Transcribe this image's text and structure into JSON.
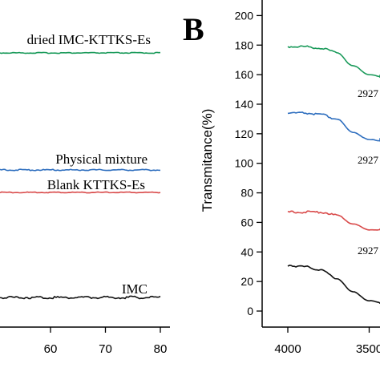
{
  "panel_b_label": "B",
  "chart_data": [
    {
      "type": "line",
      "panel": "A",
      "xlabel": "",
      "ylabel": "",
      "xlim": [
        0,
        80
      ],
      "x_ticks": [
        60,
        70,
        80
      ],
      "x_tick_labels": [
        "60",
        "70",
        "80"
      ],
      "series": [
        {
          "name": "dried IMC-KTTKS-Es",
          "color": "#1a9a5a",
          "x": [
            0,
            80
          ],
          "y": [
            0,
            0
          ]
        },
        {
          "name": "Physical mixture",
          "color": "#2f6fbf",
          "x": [
            0,
            80
          ],
          "y": [
            0,
            0
          ]
        },
        {
          "name": "Blank KTTKS-Es",
          "color": "#d94a4a",
          "x": [
            0,
            80
          ],
          "y": [
            0,
            0
          ]
        },
        {
          "name": "IMC",
          "color": "#111111",
          "x": [
            0,
            80
          ],
          "y": [
            0,
            0
          ]
        }
      ]
    },
    {
      "type": "line",
      "panel": "B",
      "ylabel": "Transmitance(%)",
      "xlabel": "",
      "xlim": [
        4200,
        3200
      ],
      "ylim": [
        -5,
        205
      ],
      "y_ticks": [
        0,
        20,
        40,
        60,
        80,
        100,
        120,
        140,
        160,
        180,
        200
      ],
      "y_tick_labels": [
        "0",
        "20",
        "40",
        "60",
        "80",
        "100",
        "120",
        "140",
        "160",
        "180",
        "200"
      ],
      "x_ticks": [
        4000,
        3500
      ],
      "x_tick_labels": [
        "4000",
        "3500"
      ],
      "annotations": [
        "2927",
        "2927",
        "2927"
      ],
      "series": [
        {
          "color": "#1a9a5a",
          "x": [
            4000,
            3900,
            3800,
            3700,
            3600,
            3500,
            3400,
            3300,
            3250
          ],
          "y": [
            179,
            179,
            178,
            175,
            166,
            160,
            158,
            158,
            160
          ]
        },
        {
          "color": "#2f6fbf",
          "x": [
            4000,
            3900,
            3800,
            3700,
            3600,
            3500,
            3400,
            3300,
            3250
          ],
          "y": [
            134,
            134,
            133,
            130,
            121,
            116,
            115,
            115,
            117
          ]
        },
        {
          "color": "#d94a4a",
          "x": [
            4000,
            3900,
            3800,
            3700,
            3600,
            3500,
            3400,
            3300,
            3250
          ],
          "y": [
            67,
            67,
            67,
            65,
            59,
            55,
            55,
            55,
            56
          ]
        },
        {
          "color": "#111111",
          "x": [
            4000,
            3900,
            3800,
            3700,
            3600,
            3500,
            3400,
            3300,
            3250
          ],
          "y": [
            31,
            30,
            28,
            22,
            13,
            7,
            5,
            5,
            6
          ]
        }
      ]
    }
  ]
}
